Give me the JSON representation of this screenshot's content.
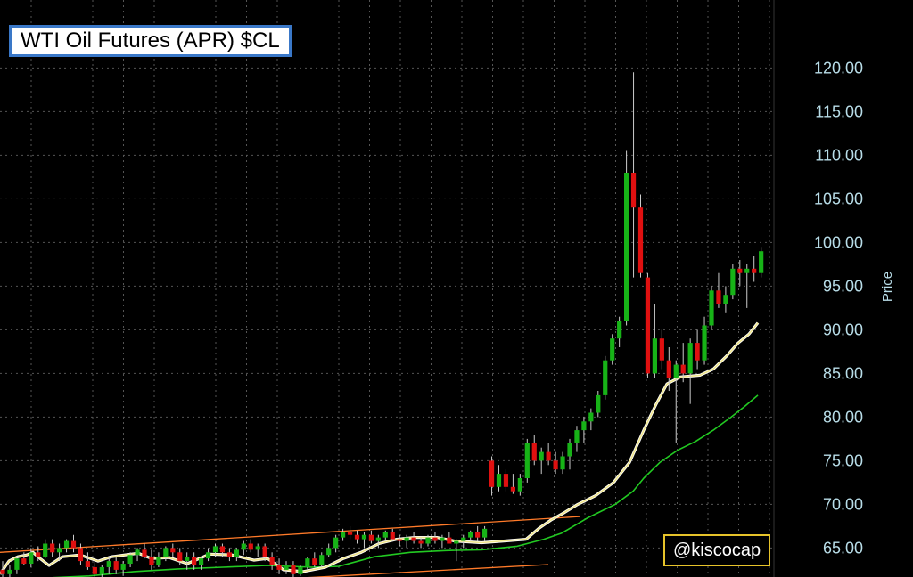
{
  "chart_data": {
    "type": "candlestick",
    "title": "WTI Oil Futures (APR) $CL",
    "ylabel": "Price",
    "ylim": [
      60,
      123
    ],
    "yticks": [
      "120.00",
      "115.00",
      "110.00",
      "105.00",
      "100.00",
      "95.00",
      "90.00",
      "85.00",
      "80.00",
      "75.00",
      "70.00",
      "65.00"
    ],
    "watermark": "@kiscocap",
    "grid": true,
    "colors": {
      "up": "#17b317",
      "down": "#e01010",
      "wick": "#cccccc",
      "ma_short": "#f0e68c",
      "ma_long": "#22c922",
      "channel": "#ff7a29",
      "axis_text": "#b8dde8",
      "grid": "#555555"
    },
    "series": [
      {
        "name": "ohlc",
        "values": [
          [
            62.5,
            63.5,
            61.5,
            62.0
          ],
          [
            62.0,
            63.0,
            61.0,
            62.5
          ],
          [
            62.5,
            64.0,
            62.0,
            63.8
          ],
          [
            63.8,
            64.5,
            63.0,
            63.2
          ],
          [
            63.2,
            65.0,
            62.8,
            64.5
          ],
          [
            64.5,
            65.2,
            63.5,
            64.0
          ],
          [
            64.0,
            66.0,
            63.8,
            65.5
          ],
          [
            65.5,
            66.0,
            64.0,
            64.5
          ],
          [
            64.5,
            65.5,
            63.5,
            65.0
          ],
          [
            65.0,
            66.0,
            64.5,
            65.8
          ],
          [
            65.8,
            66.5,
            64.5,
            65.0
          ],
          [
            65.0,
            65.5,
            63.0,
            63.5
          ],
          [
            63.5,
            64.5,
            62.5,
            62.8
          ],
          [
            62.8,
            63.5,
            61.5,
            62.0
          ],
          [
            62.0,
            63.0,
            61.5,
            62.8
          ],
          [
            62.8,
            64.0,
            62.0,
            63.5
          ],
          [
            63.5,
            64.0,
            62.0,
            62.5
          ],
          [
            62.5,
            63.5,
            61.8,
            63.2
          ],
          [
            63.2,
            64.5,
            62.8,
            64.2
          ],
          [
            64.2,
            65.0,
            63.5,
            64.8
          ],
          [
            64.8,
            65.5,
            63.8,
            64.0
          ],
          [
            64.0,
            64.8,
            62.5,
            63.0
          ],
          [
            63.0,
            64.5,
            62.8,
            64.0
          ],
          [
            64.0,
            65.2,
            63.5,
            65.0
          ],
          [
            65.0,
            65.5,
            64.0,
            64.5
          ],
          [
            64.5,
            65.0,
            63.0,
            63.5
          ],
          [
            63.5,
            64.5,
            62.5,
            64.0
          ],
          [
            64.0,
            64.5,
            62.5,
            63.0
          ],
          [
            63.0,
            64.0,
            62.5,
            63.8
          ],
          [
            63.8,
            65.0,
            63.5,
            64.5
          ],
          [
            64.5,
            65.5,
            64.0,
            65.2
          ],
          [
            65.2,
            65.5,
            64.0,
            64.5
          ],
          [
            64.5,
            65.0,
            63.5,
            64.0
          ],
          [
            64.0,
            65.0,
            63.5,
            64.8
          ],
          [
            64.8,
            65.8,
            64.2,
            65.5
          ],
          [
            65.5,
            66.0,
            64.5,
            64.8
          ],
          [
            64.8,
            65.5,
            64.0,
            65.2
          ],
          [
            65.2,
            65.5,
            63.5,
            64.0
          ],
          [
            64.0,
            64.5,
            62.5,
            63.0
          ],
          [
            63.0,
            63.8,
            62.0,
            62.5
          ],
          [
            62.5,
            63.5,
            62.0,
            63.0
          ],
          [
            63.0,
            63.5,
            61.5,
            62.0
          ],
          [
            62.0,
            63.0,
            61.8,
            62.8
          ],
          [
            62.8,
            64.0,
            62.5,
            63.8
          ],
          [
            63.8,
            64.5,
            62.8,
            63.0
          ],
          [
            63.0,
            64.5,
            62.8,
            64.2
          ],
          [
            64.2,
            65.5,
            64.0,
            65.0
          ],
          [
            65.0,
            66.5,
            64.5,
            66.2
          ],
          [
            66.2,
            67.2,
            65.8,
            66.8
          ],
          [
            66.8,
            67.5,
            66.0,
            66.5
          ],
          [
            66.5,
            67.0,
            65.5,
            66.0
          ],
          [
            66.0,
            66.8,
            65.0,
            66.5
          ],
          [
            66.5,
            67.0,
            65.5,
            65.8
          ],
          [
            65.8,
            66.5,
            65.0,
            66.2
          ],
          [
            66.2,
            67.0,
            65.8,
            66.8
          ],
          [
            66.8,
            67.2,
            65.8,
            66.0
          ],
          [
            66.0,
            66.5,
            65.2,
            65.8
          ],
          [
            65.8,
            66.5,
            65.0,
            66.2
          ],
          [
            66.2,
            66.8,
            65.5,
            65.8
          ],
          [
            65.8,
            66.2,
            65.0,
            65.5
          ],
          [
            65.5,
            66.5,
            65.2,
            66.2
          ],
          [
            66.2,
            66.8,
            65.5,
            65.8
          ],
          [
            65.8,
            66.5,
            65.0,
            66.2
          ],
          [
            66.2,
            66.8,
            65.5,
            65.5
          ],
          [
            65.5,
            66.0,
            63.5,
            65.8
          ],
          [
            65.8,
            66.5,
            65.0,
            66.2
          ],
          [
            66.2,
            67.0,
            65.8,
            66.8
          ],
          [
            66.8,
            67.5,
            65.8,
            66.2
          ],
          [
            66.2,
            67.5,
            65.8,
            67.2
          ],
          [
            75.0,
            75.5,
            71.0,
            72.0
          ],
          [
            72.0,
            74.5,
            71.5,
            73.5
          ],
          [
            73.5,
            74.0,
            71.5,
            72.0
          ],
          [
            72.0,
            73.5,
            71.2,
            71.5
          ],
          [
            71.5,
            73.5,
            71.0,
            73.0
          ],
          [
            73.0,
            77.5,
            72.5,
            77.0
          ],
          [
            77.0,
            78.0,
            74.5,
            75.0
          ],
          [
            75.0,
            76.5,
            73.5,
            76.0
          ],
          [
            76.0,
            77.0,
            74.5,
            75.0
          ],
          [
            75.0,
            76.0,
            73.5,
            74.0
          ],
          [
            74.0,
            76.0,
            73.5,
            75.5
          ],
          [
            75.5,
            77.5,
            74.0,
            77.0
          ],
          [
            77.0,
            79.0,
            76.0,
            78.5
          ],
          [
            78.5,
            80.0,
            77.0,
            79.5
          ],
          [
            79.5,
            81.0,
            78.5,
            80.5
          ],
          [
            80.5,
            83.0,
            80.0,
            82.5
          ],
          [
            82.5,
            87.0,
            82.0,
            86.5
          ],
          [
            86.5,
            89.5,
            86.0,
            89.0
          ],
          [
            89.0,
            91.5,
            88.0,
            91.0
          ],
          [
            91.0,
            110.5,
            90.5,
            108.0
          ],
          [
            108.0,
            119.5,
            96.0,
            104.0
          ],
          [
            104.0,
            105.5,
            96.0,
            96.5
          ],
          [
            96.0,
            96.5,
            84.5,
            85.0
          ],
          [
            85.0,
            93.0,
            84.5,
            89.0
          ],
          [
            89.0,
            90.0,
            85.5,
            86.5
          ],
          [
            86.5,
            88.0,
            83.0,
            84.5
          ],
          [
            84.5,
            86.5,
            77.0,
            86.0
          ],
          [
            86.0,
            88.5,
            84.0,
            85.0
          ],
          [
            85.0,
            89.0,
            81.5,
            88.5
          ],
          [
            88.5,
            90.0,
            85.5,
            86.5
          ],
          [
            86.5,
            91.5,
            86.0,
            90.5
          ],
          [
            90.5,
            95.0,
            90.0,
            94.5
          ],
          [
            94.5,
            96.5,
            92.5,
            93.0
          ],
          [
            93.0,
            95.0,
            92.0,
            94.0
          ],
          [
            94.0,
            97.5,
            93.5,
            97.0
          ],
          [
            97.0,
            98.0,
            95.0,
            96.5
          ],
          [
            96.5,
            97.5,
            92.5,
            97.0
          ],
          [
            97.0,
            98.5,
            95.5,
            96.5
          ],
          [
            96.5,
            99.5,
            96.0,
            99.0
          ]
        ]
      },
      {
        "name": "ma_short",
        "values": [
          [
            0,
            62.0
          ],
          [
            10,
            63.5
          ],
          [
            20,
            64.0
          ],
          [
            30,
            64.2
          ],
          [
            37,
            64.5
          ],
          [
            45,
            63.8
          ],
          [
            55,
            63.0
          ],
          [
            70,
            64.0
          ],
          [
            90,
            64.2
          ],
          [
            110,
            63.5
          ],
          [
            125,
            64.0
          ],
          [
            140,
            64.2
          ],
          [
            155,
            64.4
          ],
          [
            170,
            63.8
          ],
          [
            190,
            63.9
          ],
          [
            210,
            63.2
          ],
          [
            235,
            64.3
          ],
          [
            260,
            64.2
          ],
          [
            285,
            63.6
          ],
          [
            300,
            63.8
          ],
          [
            318,
            62.5
          ],
          [
            340,
            62.3
          ],
          [
            365,
            62.8
          ],
          [
            385,
            63.8
          ],
          [
            405,
            64.5
          ],
          [
            425,
            65.5
          ],
          [
            445,
            66.0
          ],
          [
            465,
            66.2
          ],
          [
            490,
            66.2
          ],
          [
            510,
            65.8
          ],
          [
            540,
            65.6
          ],
          [
            565,
            65.8
          ],
          [
            590,
            66.0
          ],
          [
            605,
            67.3
          ],
          [
            618,
            68.2
          ],
          [
            632,
            69.0
          ],
          [
            648,
            70.0
          ],
          [
            668,
            71.0
          ],
          [
            688,
            72.5
          ],
          [
            706,
            74.8
          ],
          [
            722,
            78.5
          ],
          [
            736,
            81.5
          ],
          [
            748,
            83.8
          ],
          [
            763,
            84.6
          ],
          [
            785,
            84.8
          ],
          [
            800,
            85.5
          ],
          [
            815,
            87.0
          ],
          [
            828,
            88.5
          ],
          [
            840,
            89.5
          ],
          [
            850,
            90.8
          ]
        ]
      },
      {
        "name": "ma_long",
        "values": [
          [
            0,
            60.8
          ],
          [
            30,
            61.2
          ],
          [
            60,
            61.6
          ],
          [
            100,
            61.8
          ],
          [
            150,
            62.3
          ],
          [
            200,
            62.6
          ],
          [
            250,
            62.8
          ],
          [
            300,
            63.0
          ],
          [
            350,
            62.8
          ],
          [
            380,
            62.9
          ],
          [
            420,
            64.0
          ],
          [
            460,
            64.5
          ],
          [
            500,
            64.7
          ],
          [
            540,
            64.8
          ],
          [
            580,
            65.2
          ],
          [
            610,
            66.0
          ],
          [
            630,
            66.7
          ],
          [
            660,
            68.5
          ],
          [
            690,
            70.0
          ],
          [
            710,
            71.5
          ],
          [
            722,
            73.0
          ],
          [
            740,
            74.8
          ],
          [
            760,
            76.2
          ],
          [
            780,
            77.2
          ],
          [
            800,
            78.5
          ],
          [
            820,
            80.0
          ],
          [
            835,
            81.2
          ],
          [
            850,
            82.5
          ]
        ]
      },
      {
        "name": "channel",
        "values": [
          [
            [
              0,
              64.5
            ],
            [
              650,
              68.6
            ]
          ],
          [
            [
              0,
              59.7
            ],
            [
              615,
              63.1
            ]
          ]
        ]
      }
    ]
  }
}
